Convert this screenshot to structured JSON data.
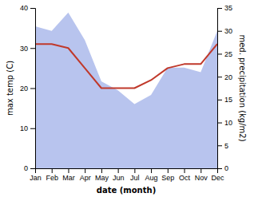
{
  "chart_data": {
    "type": "line",
    "categories": [
      "Jan",
      "Feb",
      "Mar",
      "Apr",
      "May",
      "Jun",
      "Jul",
      "Aug",
      "Sep",
      "Oct",
      "Nov",
      "Dec"
    ],
    "xlabel": "date (month)",
    "ylabel": "max temp (C)",
    "y2label": "med. precipitation (kg/m2)",
    "series": [
      {
        "type": "area",
        "axis": "y2",
        "color": "#b8c4ee",
        "values": [
          31,
          30,
          34,
          28,
          19,
          17,
          14,
          16,
          22,
          22,
          21,
          30
        ]
      },
      {
        "type": "line",
        "color": "#c0392b",
        "values": [
          31,
          31,
          30,
          25,
          20,
          20,
          20,
          22,
          25,
          26,
          26,
          31
        ]
      }
    ],
    "ylim": [
      0,
      40
    ],
    "yticks": [
      0,
      10,
      20,
      30,
      40
    ],
    "y2lim": [
      0,
      35
    ],
    "y2ticks": [
      0,
      5,
      10,
      15,
      20,
      25,
      30,
      35
    ],
    "grid": false
  }
}
